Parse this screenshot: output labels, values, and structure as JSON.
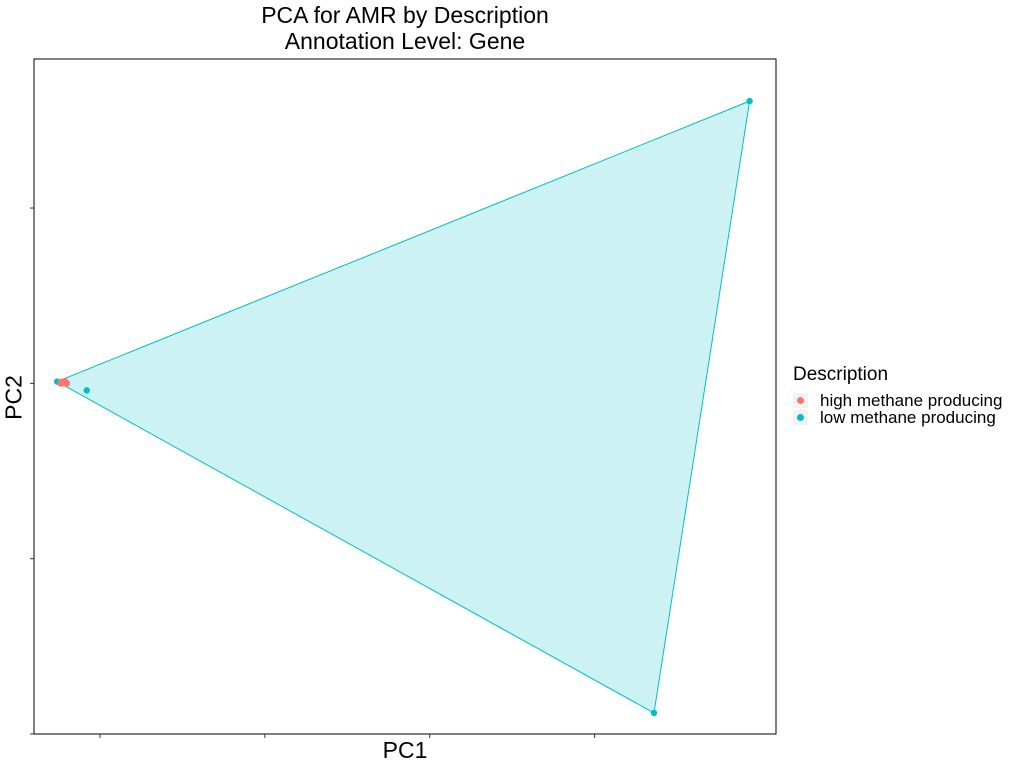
{
  "chart_data": {
    "type": "scatter",
    "title": "PCA for AMR by Description",
    "subtitle": "Annotation Level: Gene",
    "xlabel": "PC1",
    "ylabel": "PC2",
    "xlim": [
      -0.6,
      3.9
    ],
    "ylim": [
      -2.0,
      1.85
    ],
    "x_ticks": [
      -0.2,
      0.8,
      1.8,
      2.8
    ],
    "y_ticks": [
      -2.0,
      -1.0,
      0.0,
      1.0
    ],
    "x_tick_labels_visible": false,
    "y_tick_labels_visible": false,
    "grid": false,
    "legend": {
      "title": "Description",
      "position": "right"
    },
    "series": [
      {
        "name": "high methane producing",
        "color": "#F8766D",
        "points": [
          {
            "x": -0.43,
            "y": 0.01
          },
          {
            "x": -0.42,
            "y": 0.0
          },
          {
            "x": -0.41,
            "y": 0.01
          },
          {
            "x": -0.4,
            "y": 0.0
          },
          {
            "x": -0.44,
            "y": 0.0
          }
        ]
      },
      {
        "name": "low methane producing",
        "color": "#00BFC4",
        "points": [
          {
            "x": -0.46,
            "y": 0.01
          },
          {
            "x": -0.28,
            "y": -0.04
          },
          {
            "x": 3.74,
            "y": 1.61
          },
          {
            "x": 3.16,
            "y": -1.88
          },
          {
            "x": -0.43,
            "y": 0.0
          }
        ],
        "hull": [
          {
            "x": -0.46,
            "y": 0.01
          },
          {
            "x": 3.74,
            "y": 1.61
          },
          {
            "x": 3.16,
            "y": -1.88
          }
        ]
      }
    ]
  }
}
